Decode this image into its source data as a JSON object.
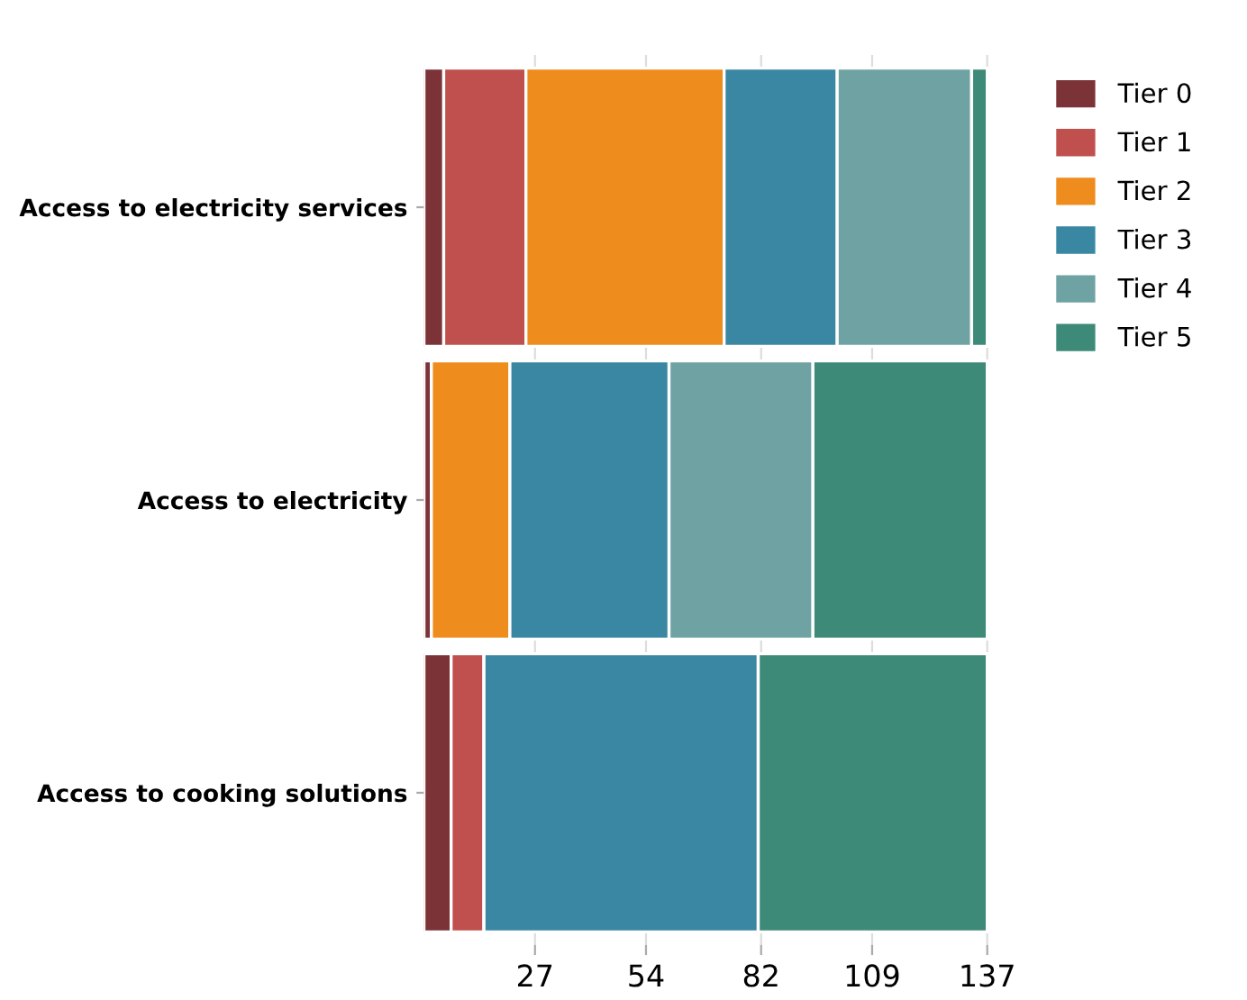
{
  "chart_data": {
    "type": "bar",
    "orientation": "horizontal",
    "stacked": true,
    "categories": [
      "Access to electricity services",
      "Access to electricity",
      "Access to cooking solutions"
    ],
    "series": [
      {
        "name": "Tier 0",
        "color": "#7b3338",
        "values": [
          4.8,
          1.8,
          6.6
        ]
      },
      {
        "name": "Tier 1",
        "color": "#c0504d",
        "values": [
          20.0,
          0,
          8.0
        ]
      },
      {
        "name": "Tier 2",
        "color": "#ee8c1d",
        "values": [
          48.2,
          19.1,
          0
        ]
      },
      {
        "name": "Tier 3",
        "color": "#3a87a3",
        "values": [
          27.5,
          38.7,
          66.7
        ]
      },
      {
        "name": "Tier 4",
        "color": "#6fa3a3",
        "values": [
          32.7,
          35.0,
          0
        ]
      },
      {
        "name": "Tier 5",
        "color": "#3e8a78",
        "values": [
          3.8,
          42.4,
          55.7
        ]
      }
    ],
    "xlim": [
      0,
      138
    ],
    "xticks": [
      27,
      54,
      82,
      109,
      137
    ],
    "grid": "x",
    "legend": "top right"
  }
}
